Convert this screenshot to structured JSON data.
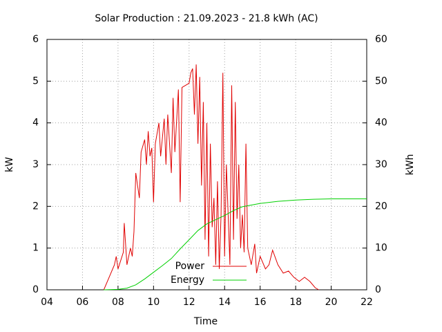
{
  "chart_data": {
    "type": "line",
    "title": "Solar Production : 21.09.2023 - 21.8 kWh (AC)",
    "xlabel": "Time",
    "ylabel": "kW",
    "y2label": "kWh",
    "xlim": [
      4,
      22
    ],
    "xticks": [
      {
        "value": 4,
        "label": "04"
      },
      {
        "value": 6,
        "label": "06"
      },
      {
        "value": 8,
        "label": "08"
      },
      10,
      12,
      14,
      16,
      18,
      20,
      22
    ],
    "ylim": [
      0,
      6
    ],
    "yticks": [
      0,
      1,
      2,
      3,
      4,
      5,
      6
    ],
    "y2lim": [
      0,
      60
    ],
    "y2ticks": [
      0,
      10,
      20,
      30,
      40,
      50,
      60
    ],
    "grid": true,
    "legend": "bottom",
    "series": [
      {
        "name": "Power",
        "color": "#e00000",
        "x": [
          7.2,
          7.5,
          7.8,
          7.9,
          8.0,
          8.3,
          8.35,
          8.5,
          8.7,
          8.8,
          8.9,
          9.0,
          9.2,
          9.3,
          9.5,
          9.6,
          9.7,
          9.8,
          9.9,
          10.0,
          10.1,
          10.3,
          10.4,
          10.6,
          10.7,
          10.8,
          11.0,
          11.1,
          11.2,
          11.4,
          11.5,
          11.6,
          11.8,
          12.0,
          12.1,
          12.2,
          12.3,
          12.4,
          12.5,
          12.6,
          12.7,
          12.8,
          12.9,
          13.0,
          13.1,
          13.2,
          13.3,
          13.4,
          13.5,
          13.6,
          13.7,
          13.8,
          13.9,
          14.0,
          14.1,
          14.3,
          14.4,
          14.5,
          14.6,
          14.7,
          14.8,
          14.9,
          15.0,
          15.1,
          15.2,
          15.3,
          15.5,
          15.7,
          15.8,
          16.0,
          16.3,
          16.5,
          16.7,
          17.0,
          17.3,
          17.6,
          17.9,
          18.2,
          18.5,
          18.8,
          19.1,
          19.3
        ],
        "values": [
          0,
          0.3,
          0.6,
          0.8,
          0.5,
          0.9,
          1.6,
          0.6,
          1.0,
          0.8,
          1.4,
          2.8,
          2.2,
          3.3,
          3.6,
          3.0,
          3.8,
          3.2,
          3.4,
          2.1,
          3.5,
          4.0,
          3.2,
          4.1,
          3.0,
          4.2,
          2.8,
          4.6,
          3.3,
          4.8,
          2.1,
          4.85,
          4.9,
          4.95,
          5.2,
          5.3,
          4.2,
          5.4,
          3.5,
          5.1,
          2.5,
          4.5,
          1.2,
          4.0,
          0.8,
          3.5,
          1.5,
          2.2,
          0.6,
          2.6,
          0.5,
          1.8,
          5.2,
          0.8,
          3.0,
          0.6,
          4.9,
          1.2,
          4.5,
          1.7,
          3.0,
          1.0,
          1.8,
          0.9,
          3.5,
          1.0,
          0.6,
          1.1,
          0.4,
          0.8,
          0.5,
          0.6,
          0.95,
          0.6,
          0.4,
          0.45,
          0.3,
          0.2,
          0.3,
          0.2,
          0.05,
          0
        ]
      },
      {
        "name": "Energy",
        "color": "#00d000",
        "axis": "y2",
        "x": [
          7.2,
          8.0,
          8.5,
          9.0,
          9.5,
          10.0,
          10.5,
          11.0,
          11.5,
          12.0,
          12.5,
          13.0,
          13.5,
          14.0,
          14.5,
          15.0,
          15.5,
          16.0,
          17.0,
          18.0,
          19.0,
          20.0,
          22.0
        ],
        "values": [
          0,
          0.1,
          0.4,
          1.2,
          2.6,
          4.2,
          5.8,
          7.5,
          9.8,
          12.0,
          14.2,
          15.8,
          16.8,
          17.8,
          19.0,
          19.9,
          20.3,
          20.7,
          21.2,
          21.5,
          21.7,
          21.8,
          21.8
        ]
      }
    ]
  }
}
